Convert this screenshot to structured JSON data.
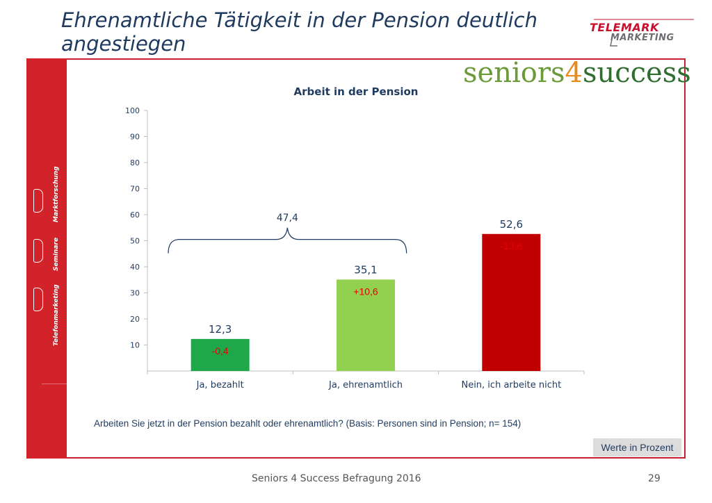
{
  "slide": {
    "title": "Ehrenamtliche Tätigkeit in der Pension deutlich angestiegen",
    "question": "Arbeiten Sie jetzt in der Pension bezahlt oder ehrenamtlich? (Basis: Personen sind in Pension; n= 154)",
    "unit_note": "Werte in Prozent",
    "footer": "Seniors 4 Success Befragung 2016",
    "page_number": "29"
  },
  "logos": {
    "telemark_line1": "TELEMARK",
    "telemark_line2": "MARKETING",
    "s4s_part1": "seniors",
    "s4s_part2": "4",
    "s4s_part3": "success"
  },
  "sidebar": {
    "labels": [
      "Marktforschung",
      "Seminare",
      "Telefonmarketing"
    ]
  },
  "chart_data": {
    "type": "bar",
    "title": "Arbeit in der Pension",
    "categories": [
      "Ja, bezahlt",
      "Ja, ehrenamtlich",
      "Nein, ich arbeite nicht"
    ],
    "values": [
      12.3,
      35.1,
      52.6
    ],
    "value_labels": [
      "12,3",
      "35,1",
      "52,6"
    ],
    "change_labels": [
      "-0,4",
      "+10,6",
      "-13,6"
    ],
    "bar_colors": [
      "#1ea84a",
      "#92d050",
      "#c00000"
    ],
    "change_color": "#e60000",
    "bracket_label": "47,4",
    "yticks": [
      10,
      20,
      30,
      40,
      50,
      60,
      70,
      80,
      90,
      100
    ],
    "ylim": [
      0,
      100
    ],
    "xlabel": "",
    "ylabel": "",
    "grid": false,
    "legend": "none"
  }
}
